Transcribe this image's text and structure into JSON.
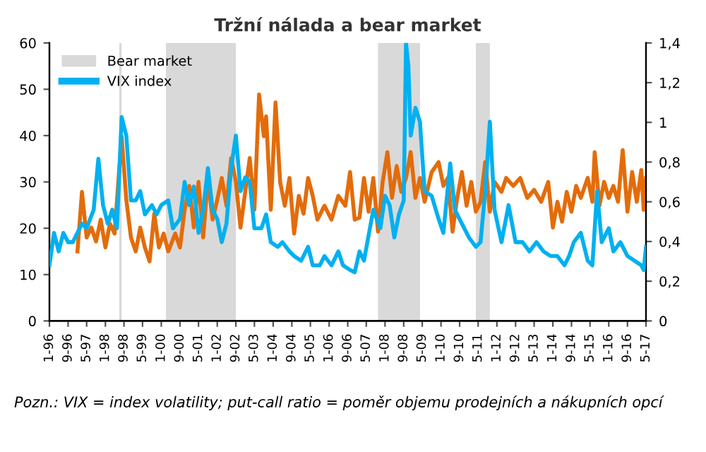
{
  "chart_data": {
    "type": "line",
    "title": "Tržní nálada a bear market",
    "annotations": [
      "Pozn.: VIX = index volatility; put-call ratio = poměr objemu prodejních a nákupních opcí"
    ],
    "xlim": [
      "1996-01",
      "2017-05"
    ],
    "xticks": [
      {
        "value": "1996-01",
        "label": "1-96"
      },
      {
        "value": "1996-09",
        "label": "9-96"
      },
      {
        "value": "1997-05",
        "label": "5-97"
      },
      {
        "value": "1998-01",
        "label": "1-98"
      },
      {
        "value": "1998-09",
        "label": "9-98"
      },
      {
        "value": "1999-05",
        "label": "5-99"
      },
      {
        "value": "2000-01",
        "label": "1-00"
      },
      {
        "value": "2000-09",
        "label": "9-00"
      },
      {
        "value": "2001-05",
        "label": "5-01"
      },
      {
        "value": "2002-01",
        "label": "1-02"
      },
      {
        "value": "2002-09",
        "label": "9-02"
      },
      {
        "value": "2003-05",
        "label": "5-03"
      },
      {
        "value": "2004-01",
        "label": "1-04"
      },
      {
        "value": "2004-09",
        "label": "9-04"
      },
      {
        "value": "2005-05",
        "label": "5-05"
      },
      {
        "value": "2006-01",
        "label": "1-06"
      },
      {
        "value": "2006-09",
        "label": "9-06"
      },
      {
        "value": "2007-05",
        "label": "5-07"
      },
      {
        "value": "2008-01",
        "label": "1-08"
      },
      {
        "value": "2008-09",
        "label": "9-08"
      },
      {
        "value": "2009-05",
        "label": "5-09"
      },
      {
        "value": "2010-01",
        "label": "1-10"
      },
      {
        "value": "2010-09",
        "label": "9-10"
      },
      {
        "value": "2011-05",
        "label": "5-11"
      },
      {
        "value": "2012-01",
        "label": "1-12"
      },
      {
        "value": "2012-09",
        "label": "9-12"
      },
      {
        "value": "2013-05",
        "label": "5-13"
      },
      {
        "value": "2014-01",
        "label": "1-14"
      },
      {
        "value": "2014-09",
        "label": "9-14"
      },
      {
        "value": "2015-05",
        "label": "5-15"
      },
      {
        "value": "2016-01",
        "label": "1-16"
      },
      {
        "value": "2016-09",
        "label": "9-16"
      },
      {
        "value": "2017-05",
        "label": "5-17"
      }
    ],
    "ylim": [
      0,
      60
    ],
    "yticks": [
      0,
      10,
      20,
      30,
      40,
      50,
      60
    ],
    "y2lim": [
      0,
      1.4
    ],
    "y2ticks": [
      {
        "value": 0,
        "label": "0"
      },
      {
        "value": 0.2,
        "label": "0,2"
      },
      {
        "value": 0.4,
        "label": "0,4"
      },
      {
        "value": 0.6,
        "label": "0,6"
      },
      {
        "value": 0.8,
        "label": "0,8"
      },
      {
        "value": 1,
        "label": "1"
      },
      {
        "value": 1.2,
        "label": "1,2"
      },
      {
        "value": 1.4,
        "label": "1,4"
      }
    ],
    "grid": false,
    "legend": "top left",
    "line_style": "solid",
    "marker": "none",
    "bands": [
      {
        "axis": "x",
        "from": "1998-07",
        "to": "1998-08",
        "label": "Bear market",
        "color": "#d9d9d9"
      },
      {
        "axis": "x",
        "from": "2000-03",
        "to": "2002-09",
        "color": "#d9d9d9"
      },
      {
        "axis": "x",
        "from": "2007-10",
        "to": "2009-04",
        "color": "#d9d9d9"
      },
      {
        "axis": "x",
        "from": "2011-04",
        "to": "2011-10",
        "color": "#d9d9d9"
      }
    ],
    "series": [
      {
        "color": "#e36c0a",
        "axis": "y2",
        "x": [
          "1997-01",
          "1997-03",
          "1997-05",
          "1997-07",
          "1997-09",
          "1997-11",
          "1998-01",
          "1998-03",
          "1998-05",
          "1998-08",
          "1998-10",
          "1998-12",
          "1999-02",
          "1999-04",
          "1999-06",
          "1999-08",
          "1999-10",
          "1999-12",
          "2000-02",
          "2000-04",
          "2000-07",
          "2000-09",
          "2000-11",
          "2001-01",
          "2001-03",
          "2001-05",
          "2001-07",
          "2001-09",
          "2001-11",
          "2002-01",
          "2002-03",
          "2002-05",
          "2002-07",
          "2002-09",
          "2002-11",
          "2003-01",
          "2003-03",
          "2003-05",
          "2003-07",
          "2003-09",
          "2003-10",
          "2003-12",
          "2004-02",
          "2004-04",
          "2004-06",
          "2004-08",
          "2004-10",
          "2004-12",
          "2005-02",
          "2005-04",
          "2005-06",
          "2005-08",
          "2005-11",
          "2006-02",
          "2006-05",
          "2006-08",
          "2006-10",
          "2006-12",
          "2007-02",
          "2007-04",
          "2007-06",
          "2007-08",
          "2007-10",
          "2007-12",
          "2008-02",
          "2008-04",
          "2008-06",
          "2008-08",
          "2008-10",
          "2008-12",
          "2009-02",
          "2009-04",
          "2009-06",
          "2009-09",
          "2009-12",
          "2010-02",
          "2010-04",
          "2010-06",
          "2010-08",
          "2010-10",
          "2010-12",
          "2011-02",
          "2011-04",
          "2011-06",
          "2011-08",
          "2011-10",
          "2011-12",
          "2012-03",
          "2012-05",
          "2012-08",
          "2012-11",
          "2013-02",
          "2013-05",
          "2013-08",
          "2013-11",
          "2014-01",
          "2014-03",
          "2014-05",
          "2014-07",
          "2014-09",
          "2014-11",
          "2015-01",
          "2015-04",
          "2015-06",
          "2015-07",
          "2015-09",
          "2015-11",
          "2016-01",
          "2016-03",
          "2016-05",
          "2016-07",
          "2016-09",
          "2016-11",
          "2017-01",
          "2017-03",
          "2017-04",
          "2017-05"
        ],
        "values": [
          0.35,
          0.65,
          0.42,
          0.47,
          0.4,
          0.51,
          0.37,
          0.49,
          0.44,
          0.93,
          0.61,
          0.42,
          0.35,
          0.47,
          0.37,
          0.3,
          0.54,
          0.37,
          0.44,
          0.35,
          0.44,
          0.37,
          0.56,
          0.68,
          0.47,
          0.7,
          0.42,
          0.72,
          0.51,
          0.61,
          0.72,
          0.58,
          0.82,
          0.7,
          0.47,
          0.65,
          0.82,
          0.56,
          1.14,
          0.93,
          1.03,
          0.56,
          1.1,
          0.7,
          0.58,
          0.72,
          0.44,
          0.63,
          0.54,
          0.72,
          0.63,
          0.51,
          0.58,
          0.51,
          0.63,
          0.58,
          0.75,
          0.51,
          0.52,
          0.72,
          0.55,
          0.72,
          0.45,
          0.7,
          0.85,
          0.62,
          0.78,
          0.65,
          0.72,
          0.85,
          0.62,
          0.72,
          0.6,
          0.75,
          0.8,
          0.68,
          0.72,
          0.45,
          0.62,
          0.75,
          0.58,
          0.7,
          0.55,
          0.6,
          0.8,
          0.55,
          0.7,
          0.65,
          0.72,
          0.68,
          0.72,
          0.62,
          0.66,
          0.6,
          0.7,
          0.47,
          0.6,
          0.5,
          0.65,
          0.55,
          0.68,
          0.62,
          0.72,
          0.6,
          0.85,
          0.58,
          0.7,
          0.62,
          0.68,
          0.6,
          0.86,
          0.55,
          0.75,
          0.6,
          0.76,
          0.56,
          0.72
        ]
      },
      {
        "name": "VIX index",
        "color": "#00b0f0",
        "x": [
          "1996-01",
          "1996-03",
          "1996-05",
          "1996-07",
          "1996-09",
          "1996-11",
          "1997-01",
          "1997-03",
          "1997-05",
          "1997-08",
          "1997-10",
          "1997-12",
          "1998-02",
          "1998-04",
          "1998-06",
          "1998-08",
          "1998-10",
          "1998-12",
          "1999-02",
          "1999-04",
          "1999-06",
          "1999-09",
          "1999-11",
          "2000-01",
          "2000-04",
          "2000-06",
          "2000-09",
          "2000-11",
          "2001-01",
          "2001-03",
          "2001-05",
          "2001-07",
          "2001-09",
          "2001-11",
          "2002-01",
          "2002-03",
          "2002-05",
          "2002-07",
          "2002-09",
          "2002-11",
          "2003-01",
          "2003-03",
          "2003-05",
          "2003-08",
          "2003-10",
          "2003-12",
          "2004-03",
          "2004-05",
          "2004-08",
          "2004-10",
          "2005-01",
          "2005-04",
          "2005-06",
          "2005-09",
          "2005-11",
          "2006-02",
          "2006-05",
          "2006-07",
          "2006-10",
          "2006-12",
          "2007-02",
          "2007-04",
          "2007-08",
          "2007-11",
          "2008-01",
          "2008-03",
          "2008-05",
          "2008-07",
          "2008-09",
          "2008-10",
          "2008-11",
          "2008-12",
          "2009-02",
          "2009-04",
          "2009-06",
          "2009-09",
          "2009-12",
          "2010-02",
          "2010-05",
          "2010-07",
          "2010-10",
          "2011-01",
          "2011-04",
          "2011-06",
          "2011-08",
          "2011-10",
          "2011-12",
          "2012-03",
          "2012-06",
          "2012-09",
          "2012-12",
          "2013-03",
          "2013-06",
          "2013-09",
          "2013-12",
          "2014-03",
          "2014-06",
          "2014-08",
          "2014-10",
          "2015-01",
          "2015-04",
          "2015-06",
          "2015-08",
          "2015-10",
          "2016-01",
          "2016-03",
          "2016-06",
          "2016-09",
          "2016-12",
          "2017-03",
          "2017-04",
          "2017-05"
        ],
        "values": [
          12,
          19,
          15,
          19,
          17,
          17,
          19,
          21,
          20,
          24,
          35,
          25,
          21,
          24,
          20,
          44,
          40,
          26,
          26,
          28,
          23,
          25,
          23,
          25,
          26,
          20,
          22,
          30,
          25,
          29,
          19,
          24,
          33,
          24,
          22,
          17,
          21,
          33,
          40,
          28,
          31,
          30,
          20,
          20,
          23,
          17,
          16,
          17,
          15,
          14,
          13,
          16,
          12,
          12,
          14,
          12,
          15,
          12,
          11,
          10.5,
          15,
          13,
          24,
          20,
          27,
          25,
          18,
          23,
          26,
          60,
          55,
          40,
          46,
          43,
          28,
          27,
          22,
          19,
          34,
          24,
          21,
          18,
          16,
          17,
          28,
          43,
          24,
          17,
          25,
          17,
          17,
          15,
          17,
          15,
          14,
          14,
          12,
          14,
          17,
          19,
          13,
          12,
          28,
          17,
          20,
          15,
          17,
          14,
          13,
          12,
          11,
          16
        ]
      }
    ]
  }
}
